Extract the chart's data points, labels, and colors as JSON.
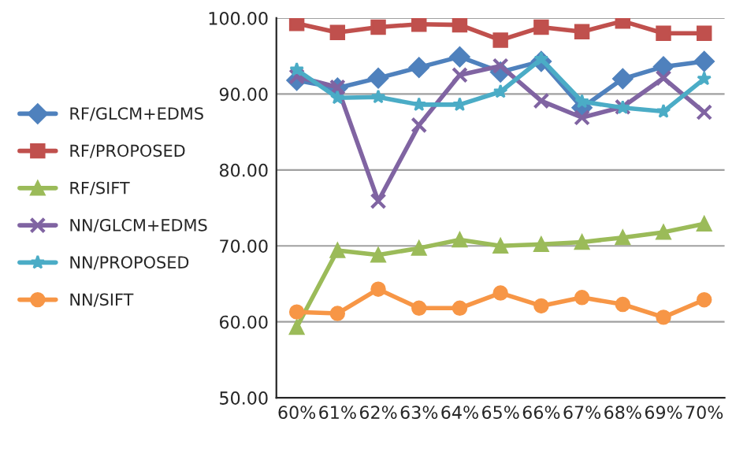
{
  "chart_data": {
    "type": "line",
    "categories": [
      "60%",
      "61%",
      "62%",
      "63%",
      "64%",
      "65%",
      "66%",
      "67%",
      "68%",
      "69%",
      "70%"
    ],
    "series": [
      {
        "name": "RF/GLCM+EDMS",
        "color": "#4f81bd",
        "marker": "diamond",
        "values": [
          91.8,
          90.8,
          92.1,
          93.5,
          94.9,
          92.9,
          94.3,
          88.2,
          92.0,
          93.6,
          94.3
        ]
      },
      {
        "name": "RF/PROPOSED",
        "color": "#c0504d",
        "marker": "square",
        "values": [
          99.3,
          98.1,
          98.8,
          99.2,
          99.1,
          97.1,
          98.8,
          98.2,
          99.6,
          98.0,
          98.0
        ]
      },
      {
        "name": "RF/SIFT",
        "color": "#9bbb59",
        "marker": "triangle",
        "values": [
          59.3,
          69.4,
          68.8,
          69.7,
          70.8,
          70.0,
          70.2,
          70.5,
          71.1,
          71.8,
          72.9
        ]
      },
      {
        "name": "NN/GLCM+EDMS",
        "color": "#8064a2",
        "marker": "cross",
        "values": [
          92.3,
          90.9,
          75.9,
          85.9,
          92.5,
          93.7,
          89.1,
          86.9,
          88.3,
          92.1,
          87.6
        ]
      },
      {
        "name": "NN/PROPOSED",
        "color": "#4bacc6",
        "marker": "star",
        "values": [
          93.2,
          89.5,
          89.6,
          88.6,
          88.6,
          90.3,
          94.6,
          89.0,
          88.2,
          87.7,
          92.0
        ]
      },
      {
        "name": "NN/SIFT",
        "color": "#f79646",
        "marker": "circle",
        "values": [
          61.3,
          61.1,
          64.3,
          61.8,
          61.8,
          63.8,
          62.1,
          63.2,
          62.3,
          60.6,
          62.9
        ]
      }
    ],
    "ylim": [
      50,
      100
    ],
    "yticks": [
      {
        "value": 50,
        "label": "50.00"
      },
      {
        "value": 60,
        "label": "60.00"
      },
      {
        "value": 70,
        "label": "70.00"
      },
      {
        "value": 80,
        "label": "80.00"
      },
      {
        "value": 90,
        "label": "90.00"
      },
      {
        "value": 100,
        "label": "100.00"
      }
    ],
    "grid": "y",
    "legend": "left"
  }
}
